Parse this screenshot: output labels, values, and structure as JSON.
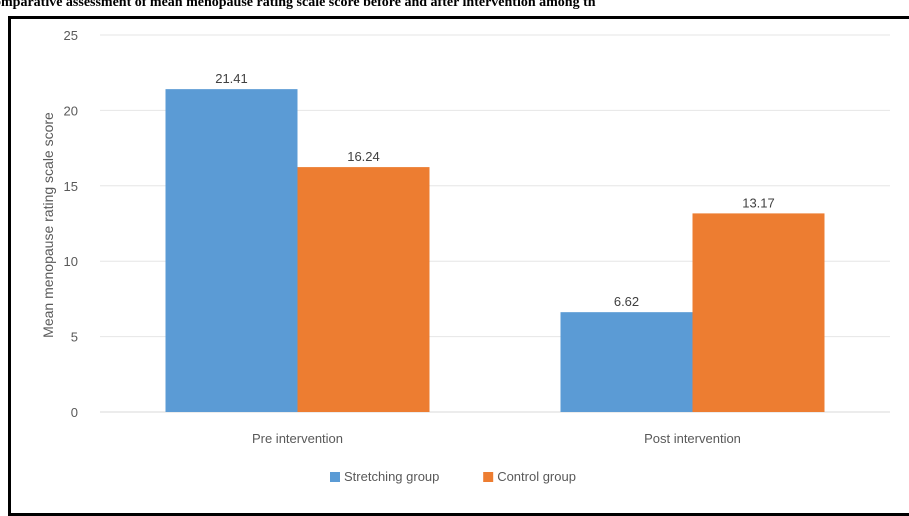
{
  "figure_title": "omparative assessment of mean menopause rating scale score before and after intervention among th",
  "chart_data": {
    "type": "bar",
    "title": "",
    "xlabel": "",
    "ylabel": "Mean menopause rating scale score",
    "categories": [
      "Pre intervention",
      "Post intervention"
    ],
    "series": [
      {
        "name": "Stretching group",
        "values": [
          21.41,
          6.62
        ],
        "color": "#5B9BD5"
      },
      {
        "name": "Control group",
        "values": [
          16.24,
          13.17
        ],
        "color": "#ED7D31"
      }
    ],
    "data_labels": [
      [
        "21.41",
        "6.62"
      ],
      [
        "16.24",
        "13.17"
      ]
    ],
    "ylim": [
      0,
      25
    ],
    "yticks": [
      0,
      5,
      10,
      15,
      20,
      25
    ],
    "grid": true,
    "legend_position": "bottom"
  }
}
